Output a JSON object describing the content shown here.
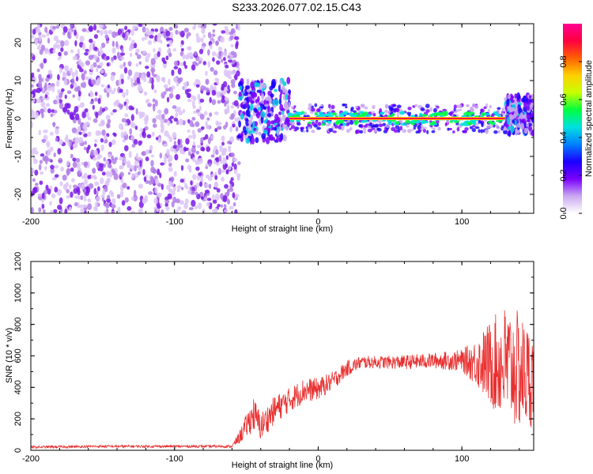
{
  "title": "S233.2026.077.02.15.C43",
  "chart_data": [
    {
      "type": "heatmap",
      "description_of_content": "spectrogram",
      "xlabel": "Height of straight line (km)",
      "ylabel": "Frequency (Hz)",
      "xlim": [
        -200,
        150
      ],
      "ylim": [
        -25,
        25
      ],
      "xticks": [
        -200,
        -100,
        0,
        100
      ],
      "yticks": [
        -20,
        -10,
        0,
        10,
        20
      ],
      "colorbar": {
        "label": "Normalized spectral amplitude",
        "range": [
          0,
          1
        ],
        "ticks": [
          "0.0",
          "0.2",
          "0.4",
          "0.6",
          "0.8"
        ],
        "colors": [
          "#ffffff",
          "#c9a8f0",
          "#7a00ff",
          "#1a00ff",
          "#0080ff",
          "#00e0e0",
          "#00ff40",
          "#c8ff00",
          "#ffd000",
          "#ff6000",
          "#ff0040",
          "#ff0090"
        ]
      },
      "regions": [
        {
          "x_from": -200,
          "x_to": -55,
          "freq_from": -25,
          "freq_to": 25,
          "amplitude": 0.1,
          "pattern": "noise"
        },
        {
          "x_from": -55,
          "x_to": -20,
          "freq_from": -6,
          "freq_to": 10,
          "amplitude": 0.3,
          "pattern": "broad"
        },
        {
          "x_from": -20,
          "x_to": 130,
          "freq_center": 0,
          "freq_width": 2,
          "amplitude": 0.95,
          "pattern": "carrier"
        },
        {
          "x_from": 130,
          "x_to": 150,
          "freq_from": -4,
          "freq_to": 6,
          "amplitude": 0.3,
          "pattern": "broad"
        }
      ]
    },
    {
      "type": "line",
      "xlabel": "Height of straight line (km)",
      "ylabel": "SNR (10 * v/v)",
      "xlim": [
        -200,
        150
      ],
      "ylim": [
        0,
        1200
      ],
      "xticks": [
        -200,
        -100,
        0,
        100
      ],
      "yticks": [
        0,
        200,
        400,
        600,
        800,
        1000,
        1200
      ],
      "color": "#e83030",
      "series": [
        {
          "name": "SNR",
          "x": [
            -200,
            -150,
            -100,
            -60,
            -55,
            -45,
            -40,
            -30,
            -20,
            -10,
            0,
            10,
            20,
            30,
            40,
            60,
            80,
            100,
            110,
            120,
            130,
            140,
            150
          ],
          "values": [
            20,
            25,
            25,
            25,
            80,
            230,
            150,
            260,
            320,
            380,
            390,
            440,
            520,
            560,
            560,
            560,
            570,
            570,
            560,
            550,
            550,
            500,
            450
          ],
          "noise": [
            8,
            8,
            8,
            8,
            40,
            110,
            90,
            90,
            80,
            80,
            70,
            60,
            50,
            40,
            40,
            45,
            50,
            70,
            150,
            280,
            380,
            380,
            300
          ]
        }
      ]
    }
  ]
}
